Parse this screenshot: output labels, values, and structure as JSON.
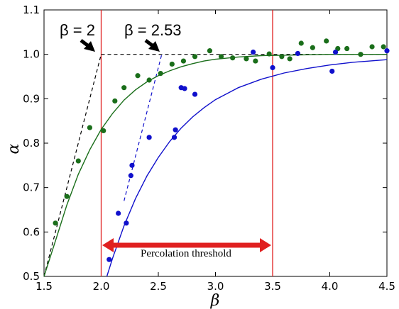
{
  "chart_data": {
    "type": "scatter",
    "xlabel": "β",
    "ylabel": "α",
    "xlim": [
      1.5,
      4.5
    ],
    "ylim": [
      0.5,
      1.1
    ],
    "xticks": [
      "1.5",
      "2.0",
      "2.5",
      "3.0",
      "3.5",
      "4.0",
      "4.5"
    ],
    "yticks": [
      "0.5",
      "0.6",
      "0.7",
      "0.8",
      "0.9",
      "1.0",
      "1.1"
    ],
    "grid": false,
    "series": [
      {
        "color": "#1a6e1a",
        "points": [
          [
            1.6,
            0.62
          ],
          [
            1.7,
            0.68
          ],
          [
            1.8,
            0.76
          ],
          [
            1.9,
            0.835
          ],
          [
            2.02,
            0.828
          ],
          [
            2.12,
            0.895
          ],
          [
            2.2,
            0.925
          ],
          [
            2.32,
            0.952
          ],
          [
            2.42,
            0.942
          ],
          [
            2.52,
            0.957
          ],
          [
            2.62,
            0.978
          ],
          [
            2.72,
            0.985
          ],
          [
            2.82,
            0.995
          ],
          [
            2.95,
            1.008
          ],
          [
            3.05,
            0.995
          ],
          [
            3.15,
            0.992
          ],
          [
            3.27,
            0.99
          ],
          [
            3.35,
            0.985
          ],
          [
            3.47,
            1.001
          ],
          [
            3.58,
            0.995
          ],
          [
            3.65,
            0.99
          ],
          [
            3.75,
            1.025
          ],
          [
            3.85,
            1.015
          ],
          [
            3.97,
            1.03
          ],
          [
            4.07,
            1.013
          ],
          [
            4.15,
            1.013
          ],
          [
            4.27,
            1.0
          ],
          [
            4.37,
            1.017
          ],
          [
            4.47,
            1.017
          ]
        ],
        "fit": [
          [
            1.5,
            0.5
          ],
          [
            1.6,
            0.58
          ],
          [
            1.7,
            0.661
          ],
          [
            1.8,
            0.73
          ],
          [
            1.9,
            0.785
          ],
          [
            2.0,
            0.831
          ],
          [
            2.1,
            0.867
          ],
          [
            2.2,
            0.897
          ],
          [
            2.3,
            0.92
          ],
          [
            2.4,
            0.938
          ],
          [
            2.5,
            0.952
          ],
          [
            2.6,
            0.963
          ],
          [
            2.7,
            0.972
          ],
          [
            2.8,
            0.979
          ],
          [
            2.9,
            0.985
          ],
          [
            3.0,
            0.989
          ],
          [
            3.2,
            0.994
          ],
          [
            3.4,
            0.997
          ],
          [
            3.6,
            0.998
          ],
          [
            3.8,
            0.999
          ],
          [
            4.0,
            1.0
          ],
          [
            4.5,
            1.0
          ]
        ]
      },
      {
        "color": "#1010cc",
        "points": [
          [
            2.07,
            0.538
          ],
          [
            2.15,
            0.642
          ],
          [
            2.22,
            0.62
          ],
          [
            2.26,
            0.727
          ],
          [
            2.27,
            0.75
          ],
          [
            2.42,
            0.813
          ],
          [
            2.64,
            0.813
          ],
          [
            2.65,
            0.83
          ],
          [
            2.7,
            0.925
          ],
          [
            2.73,
            0.923
          ],
          [
            2.82,
            0.91
          ],
          [
            3.33,
            1.005
          ],
          [
            3.5,
            0.97
          ],
          [
            3.72,
            1.002
          ],
          [
            4.02,
            0.962
          ],
          [
            4.05,
            1.005
          ],
          [
            4.5,
            1.008
          ]
        ],
        "fit": [
          [
            2.05,
            0.5
          ],
          [
            2.1,
            0.541
          ],
          [
            2.2,
            0.614
          ],
          [
            2.3,
            0.675
          ],
          [
            2.4,
            0.726
          ],
          [
            2.5,
            0.768
          ],
          [
            2.6,
            0.804
          ],
          [
            2.7,
            0.834
          ],
          [
            2.8,
            0.859
          ],
          [
            2.9,
            0.88
          ],
          [
            3.0,
            0.898
          ],
          [
            3.2,
            0.925
          ],
          [
            3.4,
            0.944
          ],
          [
            3.6,
            0.958
          ],
          [
            3.8,
            0.968
          ],
          [
            4.0,
            0.976
          ],
          [
            4.2,
            0.982
          ],
          [
            4.5,
            0.988
          ]
        ]
      }
    ],
    "reference_lines": {
      "dashed_black": [
        [
          [
            1.5,
            0.5
          ],
          [
            2.0,
            1.0
          ]
        ],
        [
          [
            2.0,
            1.0
          ],
          [
            4.5,
            1.0
          ]
        ]
      ],
      "dashed_blue": [
        [
          [
            2.2,
            0.67
          ],
          [
            2.53,
            1.0
          ]
        ]
      ],
      "vertical_red": [
        2.0,
        3.5
      ]
    },
    "annotations": {
      "beta2": "β = 2",
      "beta253": "β = 2.53",
      "band": "Percolation threshold"
    },
    "colors": {
      "red": "#e02020",
      "black": "#000000"
    }
  }
}
